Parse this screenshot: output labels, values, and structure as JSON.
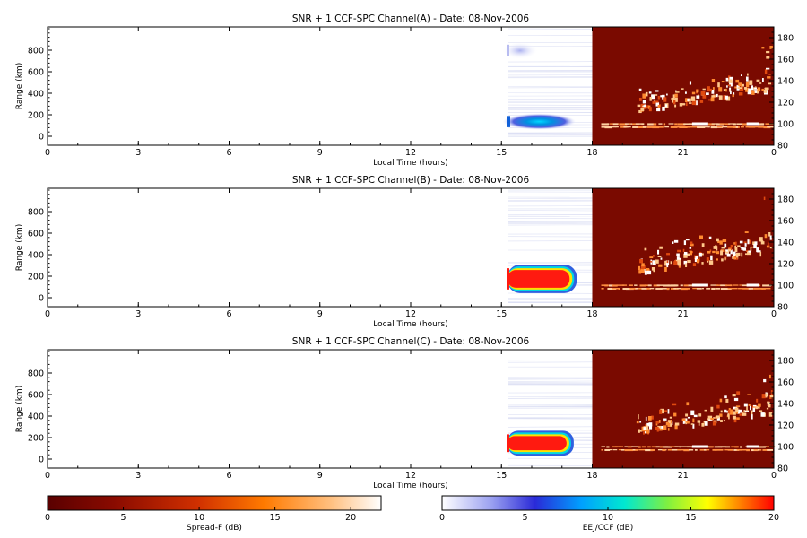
{
  "chart_data": {
    "type": "heatmap",
    "panels": [
      {
        "title": "SNR + 1 CCF-SPC Channel(A) - Date: 08-Nov-2006",
        "xlabel": "Local Time (hours)",
        "ylabel": "Range (km)",
        "xlim": [
          0,
          24
        ],
        "xticks": [
          "0",
          "3",
          "6",
          "9",
          "12",
          "15",
          "18",
          "21",
          "0"
        ],
        "ylim_left": [
          0,
          1000
        ],
        "yticks_left": [
          "0",
          "200",
          "400",
          "600",
          "800"
        ],
        "ylim_right": [
          80,
          190
        ],
        "yticks_right": [
          "80",
          "100",
          "120",
          "140",
          "160",
          "180"
        ],
        "spread_f_echo": {
          "start_h": 15.2,
          "end_h": 17.3,
          "range_km": [
            160,
            240
          ],
          "peak_db": 8,
          "secondary_range_km": [
            750,
            850
          ]
        },
        "eej_region": {
          "start_h": 18,
          "end_h": 24,
          "echo_alt_km": [
            100,
            160
          ]
        }
      },
      {
        "title": "SNR + 1 CCF-SPC Channel(B) - Date: 08-Nov-2006",
        "xlabel": "Local Time (hours)",
        "ylabel": "Range (km)",
        "xlim": [
          0,
          24
        ],
        "xticks": [
          "0",
          "3",
          "6",
          "9",
          "12",
          "15",
          "18",
          "21",
          "0"
        ],
        "ylim_left": [
          0,
          1000
        ],
        "yticks_left": [
          "0",
          "200",
          "400",
          "600",
          "800"
        ],
        "ylim_right": [
          80,
          190
        ],
        "yticks_right": [
          "80",
          "100",
          "120",
          "140",
          "160",
          "180"
        ],
        "spread_f_echo": {
          "start_h": 15.2,
          "end_h": 17.4,
          "range_km": [
            130,
            340
          ],
          "peak_db": 20
        },
        "eej_region": {
          "start_h": 18,
          "end_h": 24,
          "echo_alt_km": [
            100,
            160
          ]
        }
      },
      {
        "title": "SNR + 1 CCF-SPC Channel(C) - Date: 08-Nov-2006",
        "xlabel": "Local Time (hours)",
        "ylabel": "Range (km)",
        "xlim": [
          0,
          24
        ],
        "xticks": [
          "0",
          "3",
          "6",
          "9",
          "12",
          "15",
          "18",
          "21",
          "0"
        ],
        "ylim_left": [
          0,
          1000
        ],
        "yticks_left": [
          "0",
          "200",
          "400",
          "600",
          "800"
        ],
        "ylim_right": [
          80,
          190
        ],
        "yticks_right": [
          "80",
          "100",
          "120",
          "140",
          "160",
          "180"
        ],
        "spread_f_echo": {
          "start_h": 15.2,
          "end_h": 17.3,
          "range_km": [
            120,
            300
          ],
          "peak_db": 20
        },
        "eej_region": {
          "start_h": 18,
          "end_h": 24,
          "echo_alt_km": [
            100,
            160
          ]
        }
      }
    ],
    "colorbars": [
      {
        "label": "Spread-F (dB)",
        "range": [
          0,
          22
        ],
        "ticks": [
          "0",
          "5",
          "10",
          "15",
          "20"
        ],
        "colormap": "dark-red-to-white"
      },
      {
        "label": "EEJ/CCF (dB)",
        "range": [
          0,
          20
        ],
        "ticks": [
          "0",
          "5",
          "10",
          "15",
          "20"
        ],
        "colormap": "white-blue-cyan-yellow-red"
      }
    ]
  },
  "colors": {
    "eej_background": "#7a0a00",
    "spread_f_core": "#ff1a10",
    "axis": "#000000"
  }
}
